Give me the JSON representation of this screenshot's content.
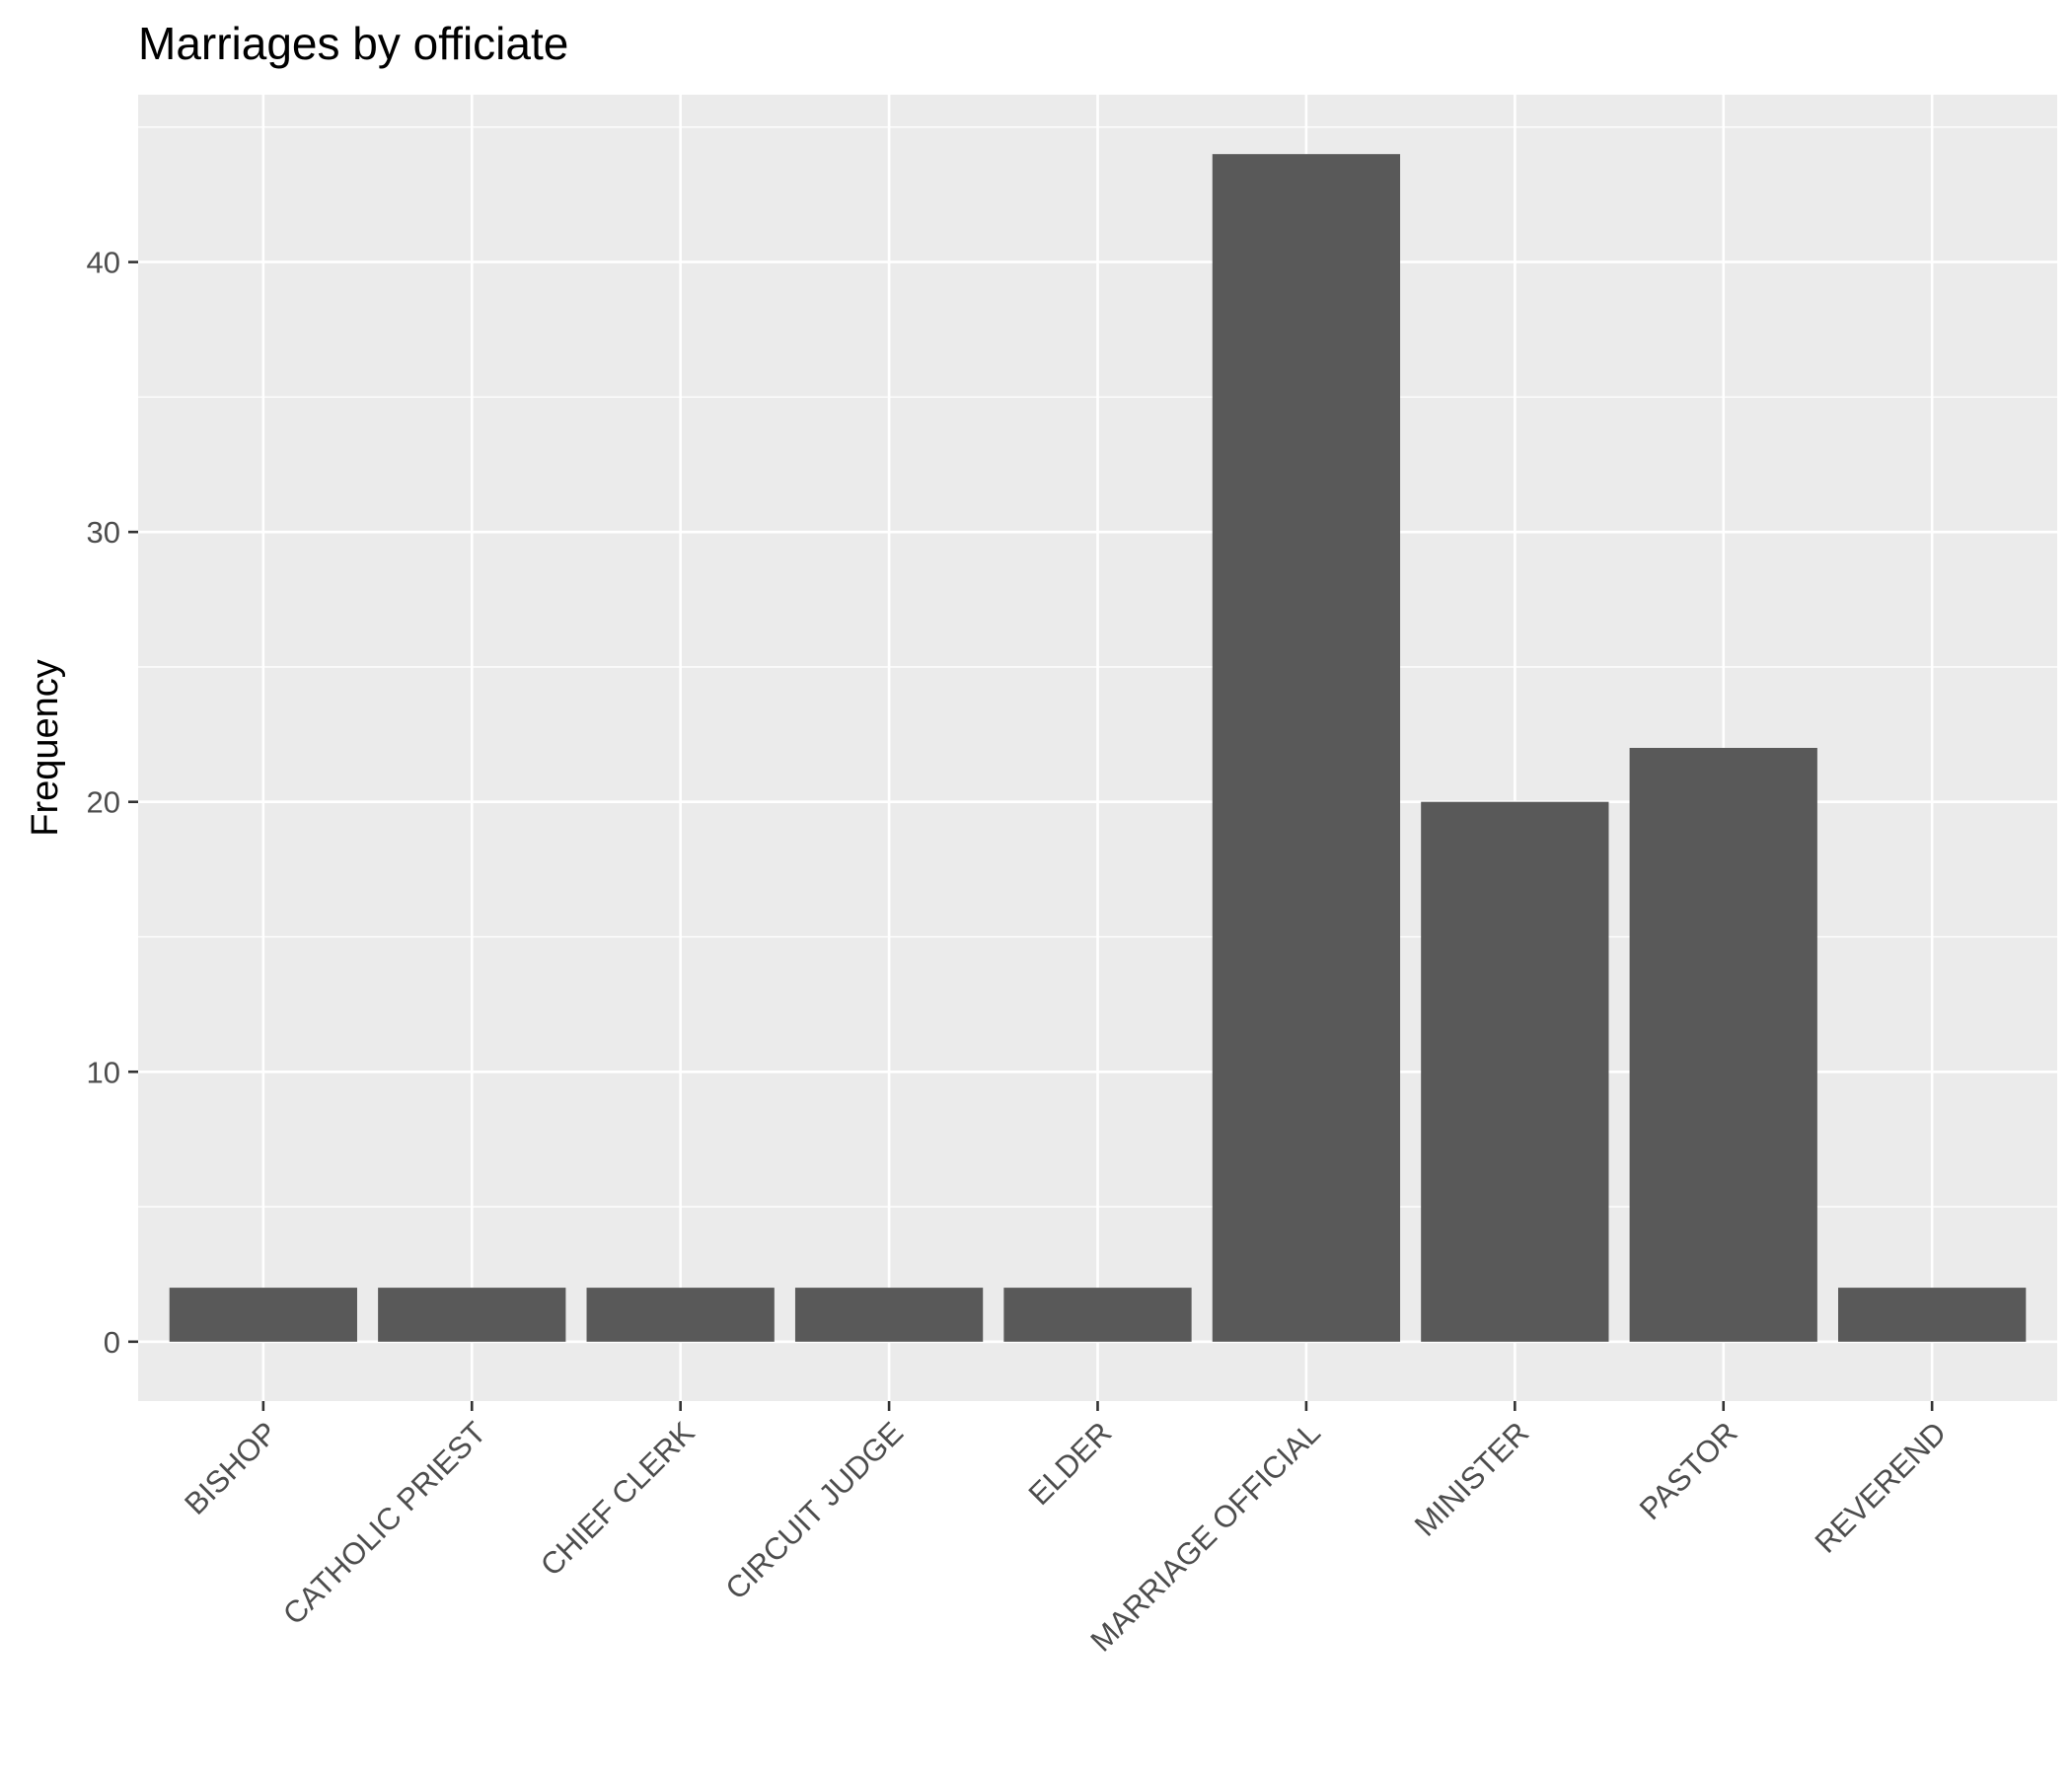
{
  "chart_data": {
    "type": "bar",
    "title": "Marriages by officiate",
    "xlabel": "",
    "ylabel": "Frequency",
    "categories": [
      "BISHOP",
      "CATHOLIC PRIEST",
      "CHIEF CLERK",
      "CIRCUIT JUDGE",
      "ELDER",
      "MARRIAGE OFFICIAL",
      "MINISTER",
      "PASTOR",
      "REVEREND"
    ],
    "values": [
      2,
      2,
      2,
      2,
      2,
      44,
      20,
      22,
      2
    ],
    "ylim": [
      -2.2,
      46.2
    ],
    "yticks": [
      0,
      10,
      20,
      30,
      40
    ],
    "ytick_labels": [
      "0",
      "10",
      "20",
      "30",
      "40"
    ],
    "grid": true,
    "colors": {
      "bar": "#595959",
      "panel": "#ebebeb",
      "grid": "#ffffff",
      "tick": "#333333"
    }
  }
}
